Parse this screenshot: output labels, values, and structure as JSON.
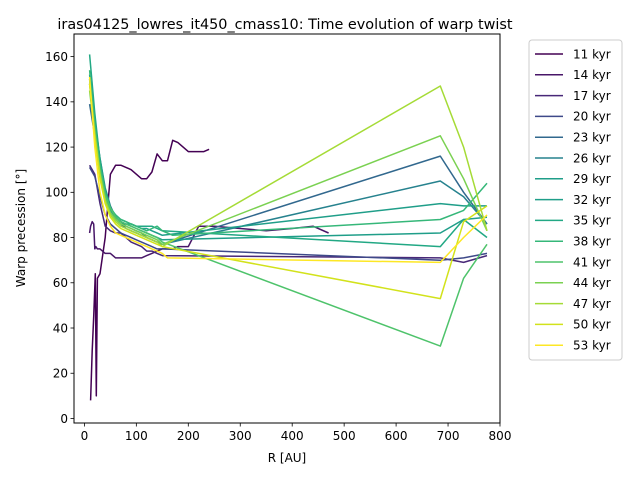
{
  "chart_data": {
    "type": "line",
    "title": "iras04125_lowres_it450_cmass10: Time evolution of warp twist",
    "xlabel": "R [AU]",
    "ylabel": "Warp precession [°]",
    "xlim": [
      -20,
      800
    ],
    "ylim": [
      -2,
      170
    ],
    "xticks": [
      0,
      100,
      200,
      300,
      400,
      500,
      600,
      700,
      800
    ],
    "yticks": [
      0,
      20,
      40,
      60,
      80,
      100,
      120,
      140,
      160
    ],
    "legend_position": "outside-right",
    "grid": false,
    "series": [
      {
        "name": "11 kyr",
        "color": "#440154",
        "x": [
          12,
          15,
          18,
          21,
          23,
          25,
          30,
          40,
          50,
          60,
          70,
          80,
          90,
          100,
          110,
          120,
          130,
          140,
          150,
          160,
          170,
          180,
          190,
          200,
          210,
          220,
          230,
          240
        ],
        "y": [
          8,
          30,
          45,
          64,
          10,
          62,
          64,
          80,
          108,
          112,
          112,
          111,
          110,
          108,
          106,
          106,
          109,
          117,
          114,
          114,
          123,
          122,
          120,
          118,
          118,
          118,
          118,
          119
        ]
      },
      {
        "name": "14 kyr",
        "color": "#481668",
        "x": [
          10,
          12,
          15,
          18,
          20,
          22,
          25,
          30,
          40,
          50,
          60,
          70,
          80,
          90,
          100,
          110,
          120,
          130,
          140,
          150,
          160,
          170,
          180,
          200,
          220,
          250,
          300,
          350,
          400,
          440,
          470
        ],
        "y": [
          82,
          85,
          87,
          86,
          75,
          76,
          75,
          75,
          73,
          73,
          71,
          71,
          71,
          71,
          71,
          71,
          72,
          73,
          74,
          75,
          75,
          75,
          76,
          76,
          85,
          85,
          84,
          83,
          84,
          85,
          82
        ]
      },
      {
        "name": "17 kyr",
        "color": "#482878",
        "x": [
          10,
          20,
          30,
          40,
          50,
          60,
          70,
          80,
          90,
          100,
          110,
          120,
          130,
          140,
          150,
          685,
          730,
          775
        ],
        "y": [
          112,
          108,
          95,
          85,
          83,
          82,
          82,
          80,
          78,
          77,
          76,
          74,
          74,
          73,
          72,
          71,
          69,
          72
        ]
      },
      {
        "name": "20 kyr",
        "color": "#3e4989",
        "x": [
          10,
          20,
          30,
          40,
          50,
          60,
          70,
          80,
          90,
          100,
          110,
          120,
          130,
          140,
          150,
          685,
          730,
          775
        ],
        "y": [
          111,
          107,
          98,
          90,
          86,
          84,
          82,
          81,
          80,
          79,
          78,
          77,
          76,
          75,
          75,
          70,
          71,
          73
        ]
      },
      {
        "name": "23 kyr",
        "color": "#31688e",
        "x": [
          10,
          20,
          30,
          40,
          50,
          60,
          70,
          80,
          90,
          100,
          110,
          120,
          130,
          140,
          150,
          685,
          730,
          775
        ],
        "y": [
          139,
          125,
          112,
          100,
          93,
          88,
          86,
          84,
          83,
          82,
          81,
          80,
          79,
          78,
          77,
          116,
          100,
          86
        ]
      },
      {
        "name": "26 kyr",
        "color": "#26828e",
        "x": [
          10,
          20,
          30,
          40,
          50,
          60,
          70,
          80,
          90,
          100,
          110,
          120,
          130,
          140,
          150,
          685,
          730,
          775
        ],
        "y": [
          148,
          130,
          115,
          102,
          94,
          89,
          87,
          85,
          84,
          83,
          82,
          80,
          79,
          78,
          77,
          105,
          98,
          86
        ]
      },
      {
        "name": "29 kyr",
        "color": "#1f9e89",
        "x": [
          10,
          20,
          30,
          40,
          50,
          60,
          70,
          80,
          90,
          100,
          110,
          120,
          130,
          140,
          150,
          685,
          730,
          775
        ],
        "y": [
          152,
          132,
          115,
          101,
          93,
          89,
          87,
          86,
          85,
          84,
          83,
          82,
          81,
          80,
          79,
          82,
          88,
          89
        ]
      },
      {
        "name": "32 kyr",
        "color": "#1f9e89",
        "x": [
          10,
          20,
          30,
          40,
          50,
          60,
          70,
          80,
          90,
          100,
          110,
          120,
          130,
          140,
          150,
          685,
          730,
          775
        ],
        "y": [
          150,
          128,
          111,
          99,
          92,
          89,
          87,
          86,
          86,
          85,
          84,
          84,
          83,
          82,
          81,
          95,
          94,
          94
        ]
      },
      {
        "name": "35 kyr",
        "color": "#22a884",
        "x": [
          10,
          20,
          30,
          40,
          50,
          60,
          70,
          80,
          90,
          100,
          110,
          120,
          130,
          140,
          150,
          685,
          730,
          775
        ],
        "y": [
          161,
          135,
          114,
          100,
          93,
          90,
          88,
          87,
          86,
          85,
          85,
          85,
          85,
          84,
          83,
          76,
          88,
          80
        ]
      },
      {
        "name": "38 kyr",
        "color": "#35b779",
        "x": [
          10,
          20,
          30,
          40,
          50,
          60,
          70,
          80,
          90,
          100,
          110,
          120,
          130,
          140,
          150,
          160,
          170,
          685,
          730,
          775
        ],
        "y": [
          154,
          130,
          112,
          100,
          93,
          90,
          88,
          87,
          86,
          85,
          84,
          83,
          84,
          85,
          83,
          82,
          81,
          88,
          92,
          104
        ]
      },
      {
        "name": "41 kyr",
        "color": "#4ec36b",
        "x": [
          10,
          20,
          30,
          40,
          50,
          60,
          70,
          80,
          90,
          100,
          110,
          120,
          130,
          140,
          150,
          685,
          730,
          775
        ],
        "y": [
          150,
          128,
          110,
          99,
          93,
          89,
          87,
          86,
          85,
          84,
          83,
          82,
          81,
          80,
          78,
          32,
          62,
          77
        ]
      },
      {
        "name": "44 kyr",
        "color": "#7ad151",
        "x": [
          10,
          20,
          30,
          40,
          50,
          60,
          70,
          80,
          90,
          100,
          110,
          120,
          130,
          140,
          150,
          685,
          730,
          775
        ],
        "y": [
          145,
          125,
          108,
          97,
          91,
          88,
          86,
          85,
          84,
          83,
          82,
          81,
          80,
          79,
          77,
          125,
          106,
          83
        ]
      },
      {
        "name": "47 kyr",
        "color": "#a5db36",
        "x": [
          10,
          20,
          30,
          40,
          50,
          60,
          70,
          80,
          90,
          100,
          110,
          120,
          130,
          140,
          150,
          685,
          730,
          775
        ],
        "y": [
          148,
          126,
          108,
          96,
          90,
          87,
          85,
          84,
          83,
          82,
          81,
          80,
          79,
          78,
          76,
          147,
          120,
          83
        ]
      },
      {
        "name": "50 kyr",
        "color": "#d2e21b",
        "x": [
          10,
          20,
          30,
          40,
          50,
          60,
          70,
          80,
          90,
          100,
          110,
          120,
          130,
          140,
          150,
          685,
          730,
          775
        ],
        "y": [
          148,
          124,
          106,
          95,
          89,
          86,
          84,
          83,
          82,
          81,
          80,
          79,
          78,
          77,
          76,
          53,
          87,
          94
        ]
      },
      {
        "name": "53 kyr",
        "color": "#fde725",
        "x": [
          10,
          20,
          30,
          40,
          50,
          60,
          70,
          80,
          90,
          100,
          110,
          120,
          130,
          140,
          150,
          160,
          685,
          730,
          775
        ],
        "y": [
          151,
          120,
          100,
          90,
          85,
          82,
          81,
          80,
          79,
          78,
          77,
          76,
          75,
          74,
          73,
          71,
          69,
          80,
          90
        ]
      }
    ]
  }
}
